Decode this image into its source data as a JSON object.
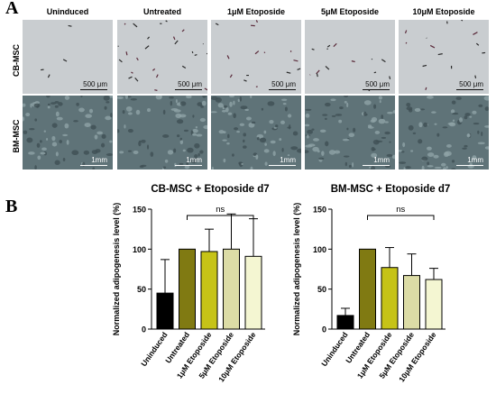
{
  "figure": {
    "panel_a_label": "A",
    "panel_b_label": "B",
    "columns": [
      "Uninduced",
      "Untreated",
      "1μM Etoposide",
      "5μM Etoposide",
      "10μM Etoposide"
    ],
    "rows": [
      {
        "label": "CB-MSC",
        "scale_bar": "500 μm",
        "tint": "#c9cdd0"
      },
      {
        "label": "BM-MSC",
        "scale_bar": "1mm",
        "tint": "#5f7378"
      }
    ]
  },
  "chart_data": [
    {
      "type": "bar",
      "title": "CB-MSC + Etoposide d7",
      "ylabel": "Normalized adipogenesis level (%)",
      "xlabel": "",
      "categories": [
        "Uninduced",
        "Untreated",
        "1μM Etoposide",
        "5μM Etoposide",
        "10μM Etoposide"
      ],
      "values": [
        45,
        100,
        97,
        100,
        91
      ],
      "errors": [
        42,
        0,
        28,
        44,
        47
      ],
      "colors": [
        "#000000",
        "#807a12",
        "#c6c317",
        "#dcdca6",
        "#f4f6d2"
      ],
      "ylim": [
        0,
        150
      ],
      "yticks": [
        0,
        50,
        100,
        150
      ],
      "annotation": "ns",
      "bracket": [
        1,
        4
      ]
    },
    {
      "type": "bar",
      "title": "BM-MSC + Etoposide d7",
      "ylabel": "Normalized adipogenesis level (%)",
      "xlabel": "",
      "categories": [
        "Uninduced",
        "Untreated",
        "1μM Etoposide",
        "5μM Etoposide",
        "10μM Etoposide"
      ],
      "values": [
        17,
        100,
        77,
        67,
        62
      ],
      "errors": [
        9,
        0,
        25,
        27,
        14
      ],
      "colors": [
        "#000000",
        "#807a12",
        "#c6c317",
        "#dcdca6",
        "#f4f6d2"
      ],
      "ylim": [
        0,
        150
      ],
      "yticks": [
        0,
        50,
        100,
        150
      ],
      "annotation": "ns",
      "bracket": [
        1,
        4
      ]
    }
  ]
}
